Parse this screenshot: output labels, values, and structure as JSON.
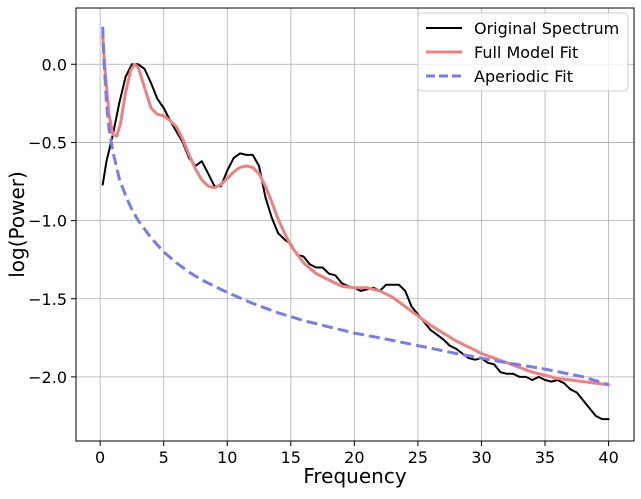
{
  "chart_data": {
    "type": "line",
    "title": "",
    "xlabel": "Frequency",
    "ylabel": "log(Power)",
    "xlim": [
      -1.9,
      42.0
    ],
    "ylim": [
      -2.41,
      0.36
    ],
    "xticks": [
      0,
      5,
      10,
      15,
      20,
      25,
      30,
      35,
      40
    ],
    "xtick_labels": [
      "0",
      "5",
      "10",
      "15",
      "20",
      "25",
      "30",
      "35",
      "40"
    ],
    "yticks": [
      0.0,
      -0.5,
      -1.0,
      -1.5,
      -2.0
    ],
    "ytick_labels": [
      "0.0",
      "−0.5",
      "−1.0",
      "−1.5",
      "−2.0"
    ],
    "grid": true,
    "legend_position": "top-right",
    "series": [
      {
        "name": "Original Spectrum",
        "color": "#000000",
        "style": "solid",
        "x": [
          0.2,
          0.5,
          1.0,
          1.5,
          2.0,
          2.5,
          3.0,
          3.5,
          4.0,
          4.5,
          5.0,
          5.5,
          6.0,
          6.5,
          7.0,
          7.5,
          8.0,
          8.5,
          9.0,
          9.5,
          10.0,
          10.5,
          11.0,
          11.5,
          12.0,
          12.5,
          13.0,
          13.5,
          14.0,
          14.5,
          15.0,
          15.5,
          16.0,
          16.5,
          17.0,
          17.5,
          18.0,
          18.5,
          19.0,
          19.5,
          20.0,
          20.5,
          21.0,
          21.5,
          22.0,
          22.5,
          23.0,
          23.5,
          24.0,
          24.5,
          25.0,
          25.5,
          26.0,
          26.5,
          27.0,
          27.5,
          28.0,
          28.5,
          29.0,
          29.5,
          30.0,
          30.5,
          31.0,
          31.5,
          32.0,
          32.5,
          33.0,
          33.5,
          34.0,
          34.5,
          35.0,
          35.5,
          36.0,
          36.5,
          37.0,
          37.5,
          38.0,
          38.5,
          39.0,
          39.5,
          40.0
        ],
        "y": [
          -0.77,
          -0.62,
          -0.45,
          -0.25,
          -0.08,
          0.0,
          0.0,
          -0.03,
          -0.12,
          -0.22,
          -0.28,
          -0.36,
          -0.43,
          -0.5,
          -0.6,
          -0.65,
          -0.62,
          -0.7,
          -0.78,
          -0.78,
          -0.68,
          -0.6,
          -0.57,
          -0.58,
          -0.58,
          -0.65,
          -0.85,
          -0.98,
          -1.08,
          -1.12,
          -1.15,
          -1.22,
          -1.23,
          -1.28,
          -1.3,
          -1.3,
          -1.34,
          -1.35,
          -1.4,
          -1.42,
          -1.43,
          -1.45,
          -1.44,
          -1.43,
          -1.45,
          -1.41,
          -1.41,
          -1.41,
          -1.45,
          -1.55,
          -1.6,
          -1.65,
          -1.7,
          -1.73,
          -1.76,
          -1.8,
          -1.82,
          -1.85,
          -1.88,
          -1.89,
          -1.88,
          -1.91,
          -1.92,
          -1.97,
          -1.98,
          -1.98,
          -2.0,
          -2.0,
          -2.02,
          -2.0,
          -2.02,
          -2.03,
          -2.02,
          -2.04,
          -2.08,
          -2.1,
          -2.15,
          -2.2,
          -2.25,
          -2.27,
          -2.27
        ]
      },
      {
        "name": "Full Model Fit",
        "color": "#f08080",
        "style": "solid",
        "x": [
          0.2,
          0.4,
          0.7,
          1.0,
          1.3,
          1.6,
          2.0,
          2.4,
          2.7,
          3.0,
          3.5,
          4.0,
          4.5,
          5.0,
          5.5,
          6.0,
          6.5,
          7.0,
          7.5,
          8.0,
          8.5,
          9.0,
          9.5,
          10.0,
          10.5,
          11.0,
          11.5,
          12.0,
          12.5,
          13.0,
          13.5,
          14.0,
          14.5,
          15.0,
          16.0,
          17.0,
          18.0,
          19.0,
          20.0,
          21.0,
          22.0,
          23.0,
          24.0,
          25.0,
          26.0,
          27.0,
          28.0,
          29.0,
          30.0,
          31.0,
          32.0,
          33.0,
          34.0,
          35.0,
          36.0,
          37.0,
          38.0,
          39.0,
          40.0
        ],
        "y": [
          0.18,
          -0.05,
          -0.32,
          -0.45,
          -0.46,
          -0.38,
          -0.18,
          -0.04,
          0.0,
          -0.02,
          -0.15,
          -0.28,
          -0.32,
          -0.33,
          -0.36,
          -0.4,
          -0.48,
          -0.58,
          -0.67,
          -0.74,
          -0.78,
          -0.79,
          -0.77,
          -0.73,
          -0.69,
          -0.66,
          -0.65,
          -0.66,
          -0.7,
          -0.78,
          -0.88,
          -0.99,
          -1.08,
          -1.16,
          -1.27,
          -1.34,
          -1.38,
          -1.42,
          -1.43,
          -1.43,
          -1.45,
          -1.49,
          -1.55,
          -1.61,
          -1.67,
          -1.72,
          -1.77,
          -1.81,
          -1.85,
          -1.88,
          -1.91,
          -1.94,
          -1.97,
          -1.99,
          -2.01,
          -2.02,
          -2.03,
          -2.04,
          -2.05
        ]
      },
      {
        "name": "Aperiodic Fit",
        "color": "#7b7bef",
        "style": "dashed",
        "x": [
          0.2,
          0.3,
          0.5,
          0.7,
          1.0,
          1.5,
          2.0,
          2.5,
          3.0,
          4.0,
          5.0,
          6.0,
          7.0,
          8.0,
          9.0,
          10.0,
          12.0,
          14.0,
          16.0,
          18.0,
          20.0,
          22.0,
          25.0,
          28.0,
          30.0,
          32.0,
          35.0,
          38.0,
          40.0
        ],
        "y": [
          0.24,
          0.02,
          -0.25,
          -0.41,
          -0.56,
          -0.73,
          -0.84,
          -0.93,
          -1.0,
          -1.11,
          -1.2,
          -1.27,
          -1.33,
          -1.38,
          -1.42,
          -1.46,
          -1.53,
          -1.59,
          -1.64,
          -1.68,
          -1.72,
          -1.75,
          -1.8,
          -1.85,
          -1.88,
          -1.91,
          -1.95,
          -2.0,
          -2.05
        ]
      }
    ]
  }
}
